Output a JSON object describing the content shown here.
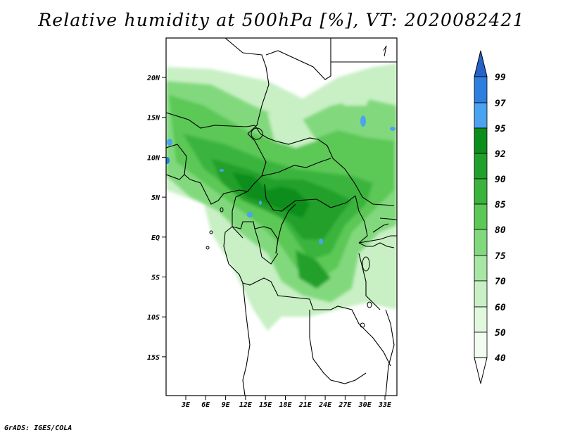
{
  "title": "Relative humidity at 500hPa [%], VT: 2020082421",
  "credit": "GrADS: IGES/COLA",
  "axes": {
    "lat_labels": [
      "20N",
      "15N",
      "10N",
      "5N",
      "EQ",
      "5S",
      "10S",
      "15S"
    ],
    "lon_labels": [
      "3E",
      "6E",
      "9E",
      "12E",
      "15E",
      "18E",
      "21E",
      "24E",
      "27E",
      "30E",
      "33E"
    ]
  },
  "colorbar": {
    "levels": [
      "99",
      "97",
      "95",
      "92",
      "90",
      "85",
      "80",
      "75",
      "70",
      "60",
      "50",
      "40"
    ],
    "colors": [
      "#2563c8",
      "#2e7ee0",
      "#4aa3f0",
      "#0b8e1a",
      "#22a02c",
      "#3ab43c",
      "#5cc857",
      "#82d97d",
      "#a8e6a3",
      "#c8f0c4",
      "#e1f8de",
      "#f2fcf0",
      "#ffffff"
    ]
  }
}
